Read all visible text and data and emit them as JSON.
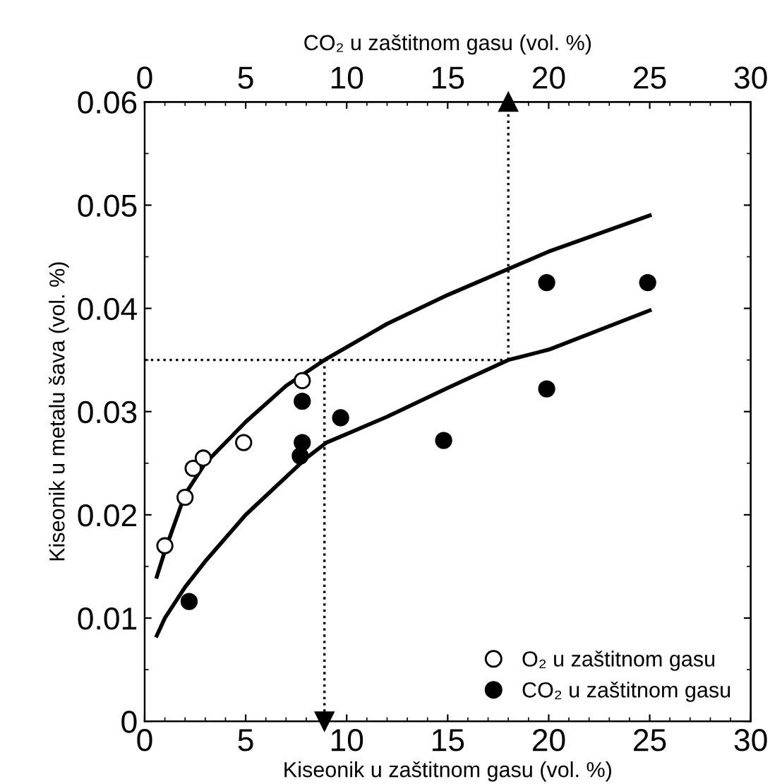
{
  "chart_data": {
    "type": "scatter",
    "xlabel": "Kiseonik u zaštitnom gasu (vol. %)",
    "ylabel": "Kiseonik u metalu šava (vol. %)",
    "x2label": "CO₂ u zaštitnom gasu (vol. %)",
    "xlim": [
      0,
      30
    ],
    "xticks": [
      0,
      5,
      10,
      15,
      20,
      25,
      30
    ],
    "x2lim": [
      0,
      30
    ],
    "x2ticks": [
      0,
      5,
      10,
      15,
      20,
      25,
      30
    ],
    "ylim": [
      0,
      0.06
    ],
    "yticks": [
      0,
      0.01,
      0.02,
      0.03,
      0.04,
      0.05,
      0.06
    ],
    "grid": false,
    "legend": "bottom right",
    "series": [
      {
        "name": "O₂ u zaštitnom gasu",
        "color": "#ffffff",
        "marker": "circle",
        "x": [
          1.0,
          2.0,
          2.4,
          2.9,
          4.9,
          7.8
        ],
        "values": [
          0.017,
          0.0217,
          0.0245,
          0.0255,
          0.027,
          0.033
        ]
      },
      {
        "name": "CO₂ u zaštitnom gasu",
        "color": "#000000",
        "marker": "circle",
        "x": [
          2.2,
          7.8,
          7.8,
          7.7,
          9.7,
          14.8,
          19.9,
          19.9,
          24.9
        ],
        "values": [
          0.0116,
          0.031,
          0.027,
          0.0257,
          0.0294,
          0.0272,
          0.0322,
          0.0425,
          0.0425
        ]
      },
      {
        "type": "line",
        "color": "#000000",
        "line_style": "solid",
        "marker": "none",
        "x": [
          0.6,
          1,
          2,
          3,
          5,
          7,
          8.9,
          12,
          15,
          20,
          25
        ],
        "values": [
          0.014,
          0.0165,
          0.022,
          0.025,
          0.029,
          0.0325,
          0.035,
          0.0385,
          0.0413,
          0.0455,
          0.049
        ]
      },
      {
        "type": "line",
        "color": "#000000",
        "line_style": "solid",
        "marker": "none",
        "x": [
          0.6,
          1,
          2,
          3,
          5,
          8,
          9,
          12,
          15,
          18,
          20,
          25
        ],
        "values": [
          0.0083,
          0.01,
          0.013,
          0.0155,
          0.02,
          0.0255,
          0.027,
          0.0295,
          0.0323,
          0.035,
          0.036,
          0.0398
        ]
      },
      {
        "type": "line",
        "color": "#000000",
        "line_style": "dotted",
        "marker": "none",
        "x": [
          0,
          18
        ],
        "values": [
          0.035,
          0.035
        ]
      },
      {
        "type": "line",
        "color": "#000000",
        "line_style": "dotted",
        "marker": "triangle",
        "x": [
          8.9,
          8.9
        ],
        "values": [
          0.035,
          0.0
        ]
      },
      {
        "type": "line",
        "color": "#000000",
        "line_style": "dotted",
        "marker": "triangle",
        "x": [
          18,
          18
        ],
        "values": [
          0.035,
          0.06
        ]
      }
    ]
  }
}
